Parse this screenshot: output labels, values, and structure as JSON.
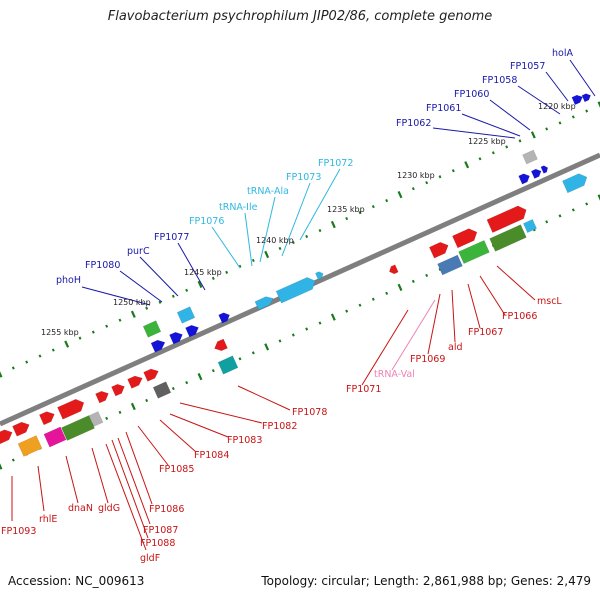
{
  "title": "Flavobacterium psychrophilum JIP02/86, complete genome",
  "accession_text": "Accession: NC_009613",
  "summary_text": "Topology: circular; Length: 2,861,988 bp; Genes: 2,479",
  "colors": {
    "backbone": "#7f7f7f",
    "tick": "#1a7a1a",
    "label_blue": "#1a1aa8",
    "label_cyan": "#30b8e0",
    "label_red": "#c81414",
    "label_pink": "#ee82b4",
    "feature_red": "#e41a1a",
    "feature_blue": "#1414d8",
    "feature_cyan": "#30b4e6",
    "feature_green": "#3cb43c",
    "feature_darkgreen": "#4a8c2a",
    "feature_teal": "#10a0a0",
    "feature_gray": "#b4b4b4",
    "feature_darkgray": "#606060",
    "feature_magenta": "#e6149a",
    "feature_orange": "#f0a020",
    "feature_steel": "#4a7ab4"
  },
  "scale_labels": [
    "1220 kbp",
    "1225 kbp",
    "1230 kbp",
    "1235 kbp",
    "1240 kbp",
    "1245 kbp",
    "1250 kbp",
    "1255 kbp"
  ],
  "gene_labels": [
    {
      "text": "holA",
      "color": "blue"
    },
    {
      "text": "FP1057",
      "color": "blue"
    },
    {
      "text": "FP1058",
      "color": "blue"
    },
    {
      "text": "FP1060",
      "color": "blue"
    },
    {
      "text": "FP1061",
      "color": "blue"
    },
    {
      "text": "FP1062",
      "color": "blue"
    },
    {
      "text": "FP1072",
      "color": "cyan"
    },
    {
      "text": "FP1073",
      "color": "cyan"
    },
    {
      "text": "tRNA-Ala",
      "color": "cyan"
    },
    {
      "text": "tRNA-Ile",
      "color": "cyan"
    },
    {
      "text": "FP1076",
      "color": "cyan"
    },
    {
      "text": "FP1077",
      "color": "blue"
    },
    {
      "text": "purC",
      "color": "blue"
    },
    {
      "text": "FP1080",
      "color": "blue"
    },
    {
      "text": "phoH",
      "color": "blue"
    },
    {
      "text": "mscL",
      "color": "red"
    },
    {
      "text": "FP1066",
      "color": "red"
    },
    {
      "text": "FP1067",
      "color": "red"
    },
    {
      "text": "ald",
      "color": "red"
    },
    {
      "text": "FP1069",
      "color": "red"
    },
    {
      "text": "tRNA-Val",
      "color": "pink"
    },
    {
      "text": "FP1071",
      "color": "red"
    },
    {
      "text": "FP1078",
      "color": "red"
    },
    {
      "text": "FP1082",
      "color": "red"
    },
    {
      "text": "FP1083",
      "color": "red"
    },
    {
      "text": "FP1084",
      "color": "red"
    },
    {
      "text": "FP1085",
      "color": "red"
    },
    {
      "text": "FP1086",
      "color": "red"
    },
    {
      "text": "FP1087",
      "color": "red"
    },
    {
      "text": "FP1088",
      "color": "red"
    },
    {
      "text": "gldF",
      "color": "red"
    },
    {
      "text": "gldG",
      "color": "red"
    },
    {
      "text": "dnaN",
      "color": "red"
    },
    {
      "text": "rhlE",
      "color": "red"
    },
    {
      "text": "FP1093",
      "color": "red"
    }
  ]
}
